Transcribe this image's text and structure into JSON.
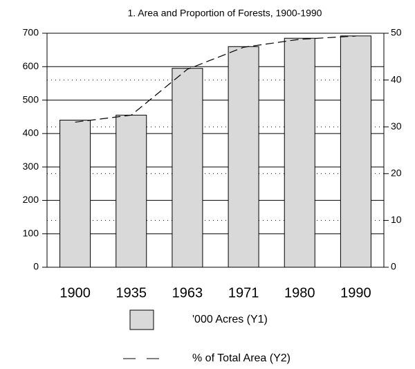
{
  "chart_data": {
    "type": "bar_line",
    "title": "1.  Area and Proportion of Forests, 1900-1990",
    "categories": [
      "1900",
      "1935",
      "1963",
      "1971",
      "1980",
      "1990"
    ],
    "series": [
      {
        "name": "'000 Acres (Y1)",
        "type": "bar",
        "color": "#d9d9d9",
        "values": [
          440,
          455,
          595,
          660,
          685,
          692
        ]
      },
      {
        "name": "% of Total Area (Y2)",
        "type": "line",
        "axis": "y2",
        "color": "#000000",
        "values": [
          31,
          32.5,
          42.3,
          47,
          48.7,
          49.4
        ]
      }
    ],
    "ylim": [
      0,
      700
    ],
    "yticks": [
      0,
      100,
      200,
      300,
      400,
      500,
      600,
      700
    ],
    "y2lim": [
      0,
      50
    ],
    "y2ticks": [
      0,
      10,
      20,
      30,
      40,
      50
    ],
    "grid": true
  }
}
